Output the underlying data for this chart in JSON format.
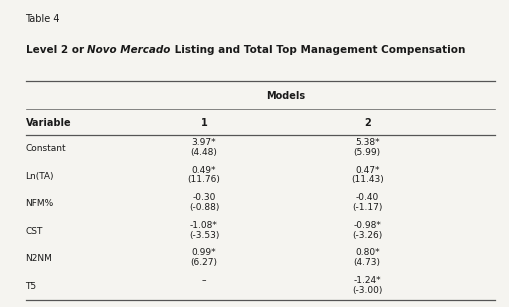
{
  "table_label": "Table 4",
  "title_parts": [
    {
      "text": "Level 2 or ",
      "bold": true,
      "italic": false
    },
    {
      "text": "Novo Mercado",
      "bold": true,
      "italic": true
    },
    {
      "text": " Listing and Total Top Management Compensation",
      "bold": true,
      "italic": false
    }
  ],
  "col_header_group": "Models",
  "col_headers": [
    "1",
    "2"
  ],
  "row_label_header": "Variable",
  "rows": [
    {
      "variable": "Constant",
      "col1_top": "3.97*",
      "col1_bot": "(4.48)",
      "col2_top": "5.38*",
      "col2_bot": "(5.99)"
    },
    {
      "variable": "Ln(TA)",
      "col1_top": "0.49*",
      "col1_bot": "(11.76)",
      "col2_top": "0.47*",
      "col2_bot": "(11.43)"
    },
    {
      "variable": "NFM%",
      "col1_top": "-0.30",
      "col1_bot": "(-0.88)",
      "col2_top": "-0.40",
      "col2_bot": "(-1.17)"
    },
    {
      "variable": "CST",
      "col1_top": "-1.08*",
      "col1_bot": "(-3.53)",
      "col2_top": "-0.98*",
      "col2_bot": "(-3.26)"
    },
    {
      "variable": "N2NM",
      "col1_top": "0.99*",
      "col1_bot": "(6.27)",
      "col2_top": "0.80*",
      "col2_bot": "(4.73)"
    },
    {
      "variable": "T5",
      "col1_top": "–",
      "col1_bot": "",
      "col2_top": "-1.24*",
      "col2_bot": "(-3.00)"
    }
  ],
  "bg_color": "#f5f4f0",
  "text_color": "#1a1a1a",
  "fontsize": 7.0,
  "title_fontsize": 7.5,
  "label_fontsize": 6.5
}
